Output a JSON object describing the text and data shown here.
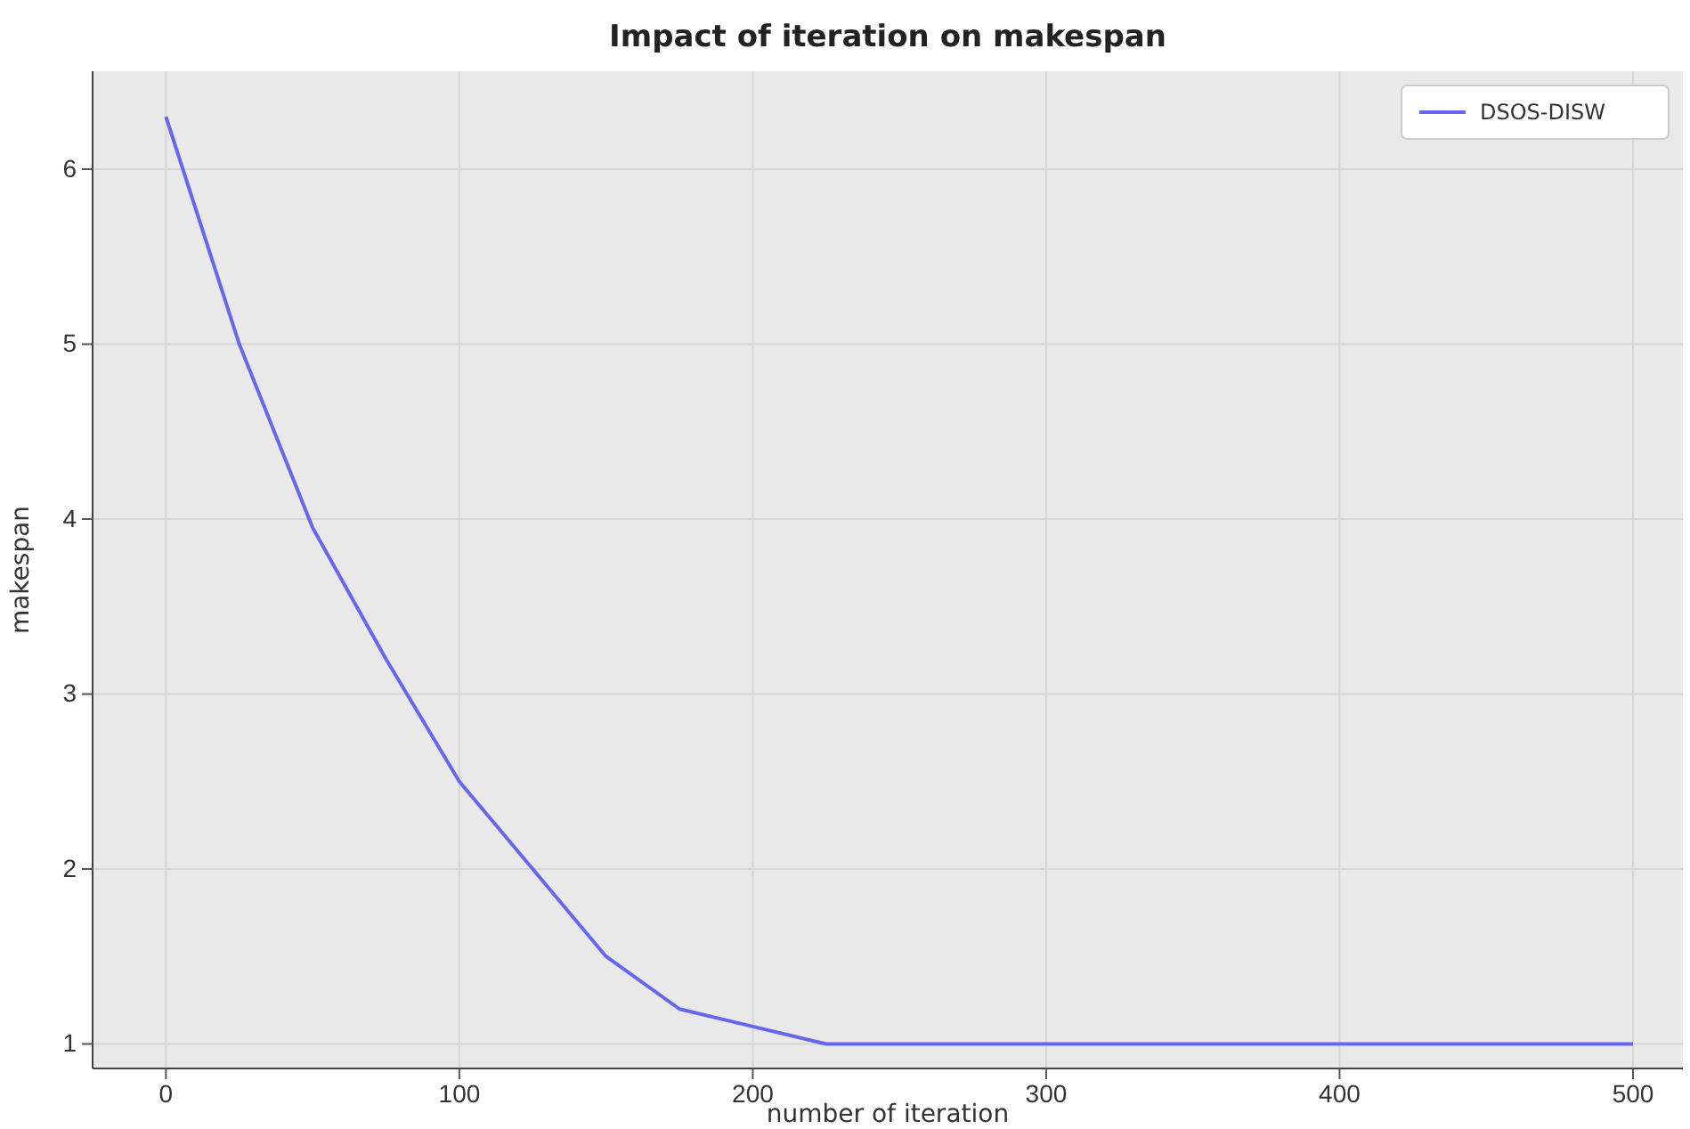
{
  "chart_data": {
    "type": "line",
    "title": "Impact of iteration on makespan",
    "xlabel": "number of iteration",
    "ylabel": "makespan",
    "x": [
      0,
      25,
      50,
      75,
      100,
      125,
      150,
      175,
      200,
      225,
      250,
      300,
      350,
      400,
      450,
      500
    ],
    "series": [
      {
        "name": "DSOS-DISW",
        "color": "#6666ee",
        "values": [
          6.3,
          5.0,
          3.95,
          3.2,
          2.5,
          2.0,
          1.5,
          1.2,
          1.1,
          1.0,
          1.0,
          1.0,
          1.0,
          1.0,
          1.0,
          1.0
        ]
      }
    ],
    "xlim": [
      -25,
      517
    ],
    "ylim": [
      0.86,
      6.56
    ],
    "xticks": [
      0,
      100,
      200,
      300,
      400,
      500
    ],
    "yticks": [
      1,
      2,
      3,
      4,
      5,
      6
    ],
    "grid": true,
    "legend": "top right",
    "marker": "none",
    "line_style": "solid"
  }
}
